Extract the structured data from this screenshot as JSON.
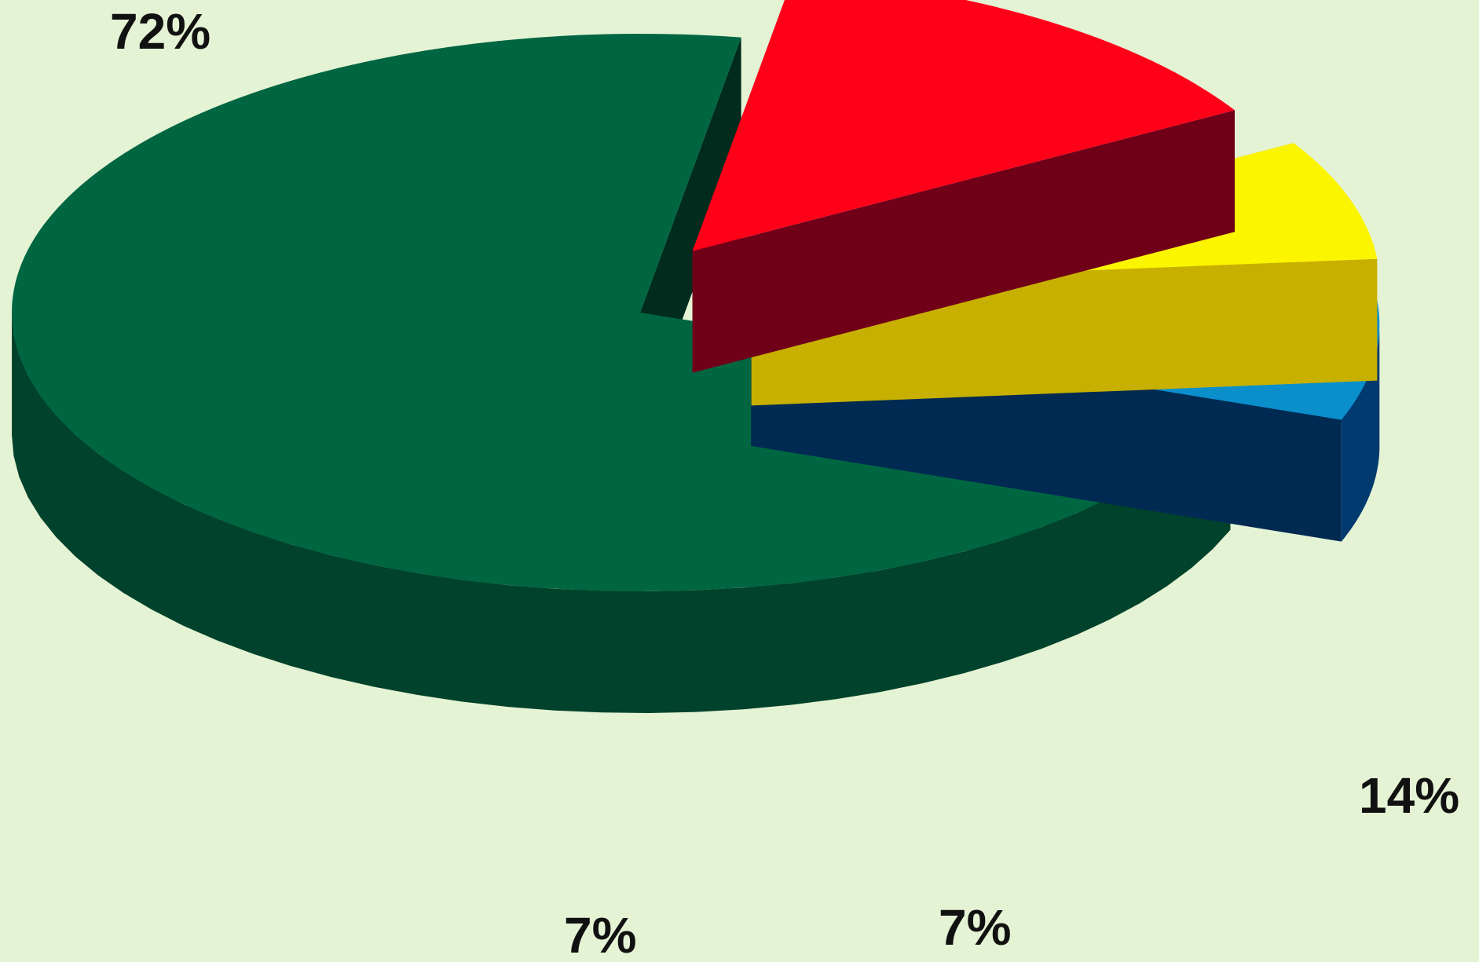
{
  "chart_data": {
    "type": "pie",
    "style": "3d-exploded",
    "title": "",
    "slices": [
      {
        "label": "72%",
        "value": 72,
        "top_color": "#006641",
        "side_color": "#00422b",
        "inner_color": "#002b1d"
      },
      {
        "label": "14%",
        "value": 14,
        "top_color": "#ff0019",
        "side_color": "#900022",
        "inner_color": "#700018"
      },
      {
        "label": "7%",
        "value": 7,
        "top_color": "#fbf500",
        "side_color": "#9c8320",
        "inner_color": "#c8b000"
      },
      {
        "label": "7%",
        "value": 7,
        "top_color": "#0a8fcb",
        "side_color": "#003a6e",
        "inner_color": "#002a52"
      }
    ],
    "background": "#e5f3d5",
    "legend": "none"
  }
}
